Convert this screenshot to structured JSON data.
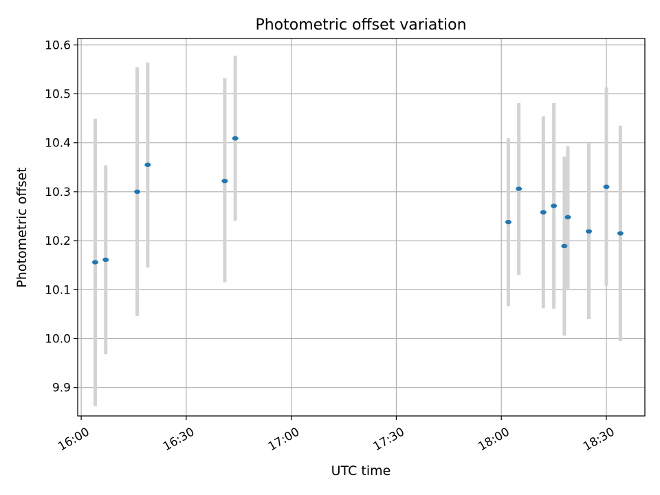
{
  "chart_data": {
    "type": "scatter",
    "title": "Photometric offset variation",
    "xlabel": "UTC time",
    "ylabel": "Photometric offset",
    "x_axis_kind": "time",
    "xlim": [
      "15:59",
      "18:41"
    ],
    "ylim": [
      9.842,
      10.613
    ],
    "x_ticks": [
      "16:00",
      "16:30",
      "17:00",
      "17:30",
      "18:00",
      "18:30"
    ],
    "y_ticks": [
      9.9,
      10.0,
      10.1,
      10.2,
      10.3,
      10.4,
      10.5,
      10.6
    ],
    "y_tick_labels": [
      "9.9",
      "10.0",
      "10.1",
      "10.2",
      "10.3",
      "10.4",
      "10.5",
      "10.6"
    ],
    "grid": true,
    "legend": "none",
    "colors": {
      "point": "#1f77b4",
      "errorbar": "#d3d3d3",
      "grid": "#b0b0b0"
    },
    "points": [
      {
        "time": "16:04",
        "y": 10.156,
        "low": 9.862,
        "high": 10.449
      },
      {
        "time": "16:07",
        "y": 10.161,
        "low": 9.968,
        "high": 10.354
      },
      {
        "time": "16:16",
        "y": 10.3,
        "low": 10.046,
        "high": 10.554
      },
      {
        "time": "16:19",
        "y": 10.355,
        "low": 10.145,
        "high": 10.564
      },
      {
        "time": "16:41",
        "y": 10.322,
        "low": 10.115,
        "high": 10.532
      },
      {
        "time": "16:44",
        "y": 10.409,
        "low": 10.241,
        "high": 10.578
      },
      {
        "time": "18:02",
        "y": 10.238,
        "low": 10.066,
        "high": 10.409
      },
      {
        "time": "18:05",
        "y": 10.306,
        "low": 10.13,
        "high": 10.481
      },
      {
        "time": "18:12",
        "y": 10.258,
        "low": 10.062,
        "high": 10.454
      },
      {
        "time": "18:15",
        "y": 10.271,
        "low": 10.061,
        "high": 10.481
      },
      {
        "time": "18:18",
        "y": 10.189,
        "low": 10.006,
        "high": 10.372
      },
      {
        "time": "18:19",
        "y": 10.248,
        "low": 10.102,
        "high": 10.393
      },
      {
        "time": "18:25",
        "y": 10.219,
        "low": 10.04,
        "high": 10.399
      },
      {
        "time": "18:30",
        "y": 10.31,
        "low": 10.108,
        "high": 10.513
      },
      {
        "time": "18:34",
        "y": 10.215,
        "low": 9.995,
        "high": 10.435
      }
    ]
  }
}
